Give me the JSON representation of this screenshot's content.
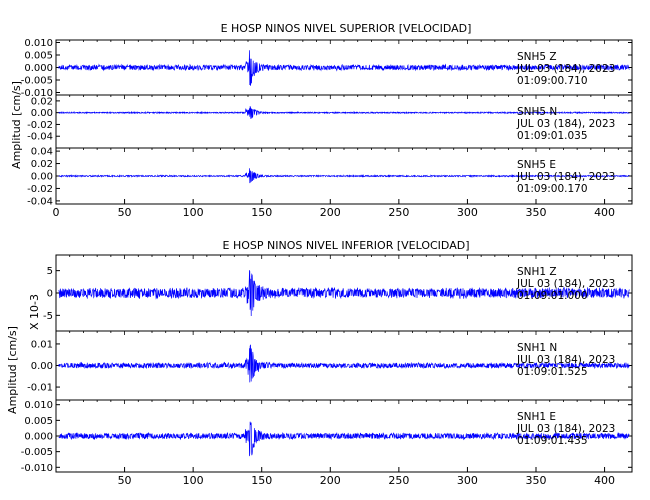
{
  "chart_data": [
    {
      "type": "line",
      "title": "E HOSP NINOS NIVEL SUPERIOR [VELOCIDAD]",
      "ylabel": "Amplitud [cm/s]",
      "xlim": [
        0,
        420
      ],
      "x_ticks": [
        0,
        50,
        100,
        150,
        200,
        250,
        300,
        350,
        400
      ],
      "x_tick_labels": [
        "0",
        "50",
        "100",
        "150",
        "200",
        "250",
        "300",
        "350",
        "400"
      ],
      "line_color": "#0000ff",
      "traces": [
        {
          "station": "SNH5",
          "component": "Z",
          "date": "JUL 03 (184), 2023",
          "time": "01:09:00.710",
          "ylim": [
            -0.011,
            0.011
          ],
          "y_ticks": [
            0.01,
            0.005,
            0.0,
            -0.005,
            -0.01
          ],
          "y_tick_labels": [
            "0.010",
            "0.005",
            "0.000",
            "-0.005",
            "-0.010"
          ],
          "event_time": 141,
          "peak_amplitude": 0.01,
          "noise_amplitude": 0.0012,
          "seed": 11
        },
        {
          "station": "SNH5",
          "component": "N",
          "date": "JUL 03 (184), 2023",
          "time": "01:09:01.035",
          "ylim": [
            -0.06,
            0.03
          ],
          "y_ticks": [
            0.02,
            0.0,
            -0.02,
            -0.04
          ],
          "y_tick_labels": [
            "0.02",
            "0.00",
            "-0.02",
            "-0.04"
          ],
          "event_time": 141,
          "peak_amplitude": 0.022,
          "noise_amplitude": 0.0012,
          "seed": 23
        },
        {
          "station": "SNH5",
          "component": "E",
          "date": "JUL 03 (184), 2023",
          "time": "01:09:00.170",
          "ylim": [
            -0.045,
            0.045
          ],
          "y_ticks": [
            0.04,
            0.02,
            0.0,
            -0.02,
            -0.04
          ],
          "y_tick_labels": [
            "0.04",
            "0.02",
            "0.00",
            "-0.02",
            "-0.04"
          ],
          "event_time": 141,
          "peak_amplitude": 0.02,
          "noise_amplitude": 0.0012,
          "seed": 37
        }
      ]
    },
    {
      "type": "line",
      "title": "E HOSP NINOS NIVEL INFERIOR [VELOCIDAD]",
      "ylabel": "Amplitud [cm/s]",
      "scale_label": "X 10-3",
      "xlim": [
        0,
        420
      ],
      "x_ticks": [
        50,
        100,
        150,
        200,
        250,
        300,
        350,
        400
      ],
      "x_tick_labels": [
        "50",
        "100",
        "150",
        "200",
        "250",
        "300",
        "350",
        "400"
      ],
      "line_color": "#0000ff",
      "traces": [
        {
          "station": "SNH1",
          "component": "Z",
          "date": "JUL 03 (184), 2023",
          "time": "01:09:01.000",
          "ylim": [
            -8.5,
            8.5
          ],
          "y_ticks": [
            5,
            0,
            -5
          ],
          "y_tick_labels": [
            "5",
            "0",
            "-5"
          ],
          "event_time": 141,
          "peak_amplitude": 8.0,
          "noise_amplitude": 1.3,
          "seed": 41
        },
        {
          "station": "SNH1",
          "component": "N",
          "date": "JUL 03 (184), 2023",
          "time": "01:09:01.525",
          "ylim": [
            -0.016,
            0.016
          ],
          "y_ticks": [
            0.01,
            0.0,
            -0.01
          ],
          "y_tick_labels": [
            "0.01",
            "0.00",
            "-0.01"
          ],
          "event_time": 141,
          "peak_amplitude": 0.014,
          "noise_amplitude": 0.0014,
          "seed": 53
        },
        {
          "station": "SNH1",
          "component": "E",
          "date": "JUL 03 (184), 2023",
          "time": "01:09:01.435",
          "ylim": [
            -0.0115,
            0.0115
          ],
          "y_ticks": [
            0.01,
            0.005,
            0.0,
            -0.005,
            -0.01
          ],
          "y_tick_labels": [
            "0.010",
            "0.005",
            "0.000",
            "-0.005",
            "-0.010"
          ],
          "event_time": 141,
          "peak_amplitude": 0.011,
          "noise_amplitude": 0.0011,
          "seed": 67
        }
      ]
    }
  ]
}
